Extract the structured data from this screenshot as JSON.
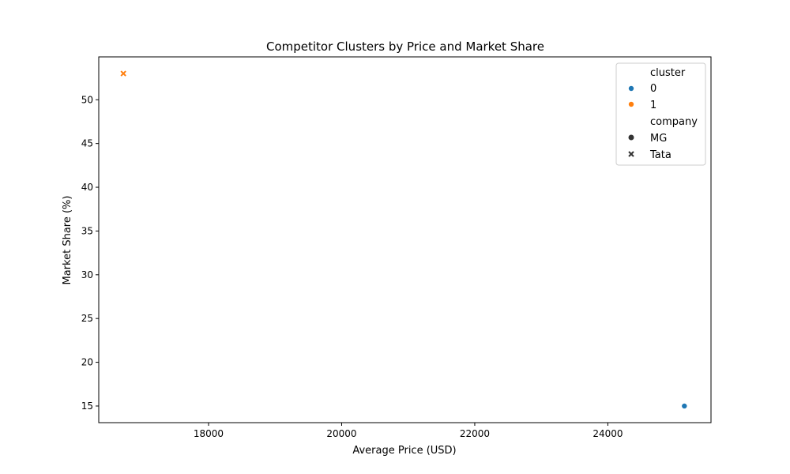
{
  "chart_data": {
    "type": "scatter",
    "title": "Competitor Clusters by Price and Market Share",
    "xlabel": "Average Price (USD)",
    "ylabel": "Market Share (%)",
    "xlim": [
      16350,
      25550
    ],
    "ylim": [
      13.1,
      54.9
    ],
    "xticks": [
      18000,
      20000,
      22000,
      24000
    ],
    "yticks": [
      15,
      20,
      25,
      30,
      35,
      40,
      45,
      50
    ],
    "grid": false,
    "legend_position": "upper right",
    "points": [
      {
        "company": "MG",
        "cluster": "0",
        "x": 25150,
        "y": 15.0
      },
      {
        "company": "Tata",
        "cluster": "1",
        "x": 16720,
        "y": 53.0
      }
    ],
    "legend": {
      "hue_title": "cluster",
      "hue_entries": [
        {
          "label": "0",
          "color": "#1f77b4"
        },
        {
          "label": "1",
          "color": "#ff7f0e"
        }
      ],
      "style_title": "company",
      "style_entries": [
        {
          "label": "MG",
          "marker": "circle"
        },
        {
          "label": "Tata",
          "marker": "x"
        }
      ]
    }
  }
}
